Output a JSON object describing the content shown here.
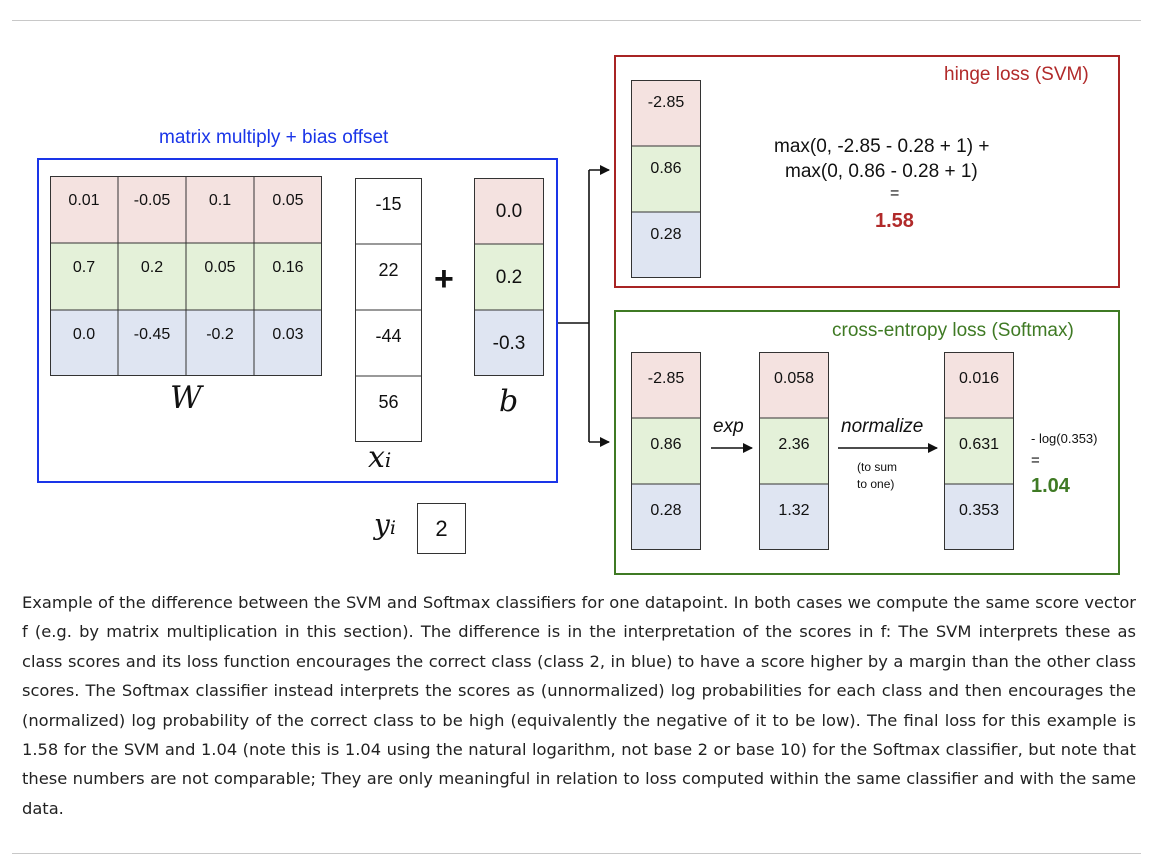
{
  "colors": {
    "row_red": "#f4e2e0",
    "row_green": "#e4f1d9",
    "row_blue": "#dfe5f2",
    "blue_border": "#1a35e8",
    "red_border": "#a82424",
    "green_border": "#3f7a24",
    "blue_text": "#1a35e8",
    "red_text": "#b12a2a",
    "green_text": "#3f7a24"
  },
  "left_panel": {
    "title": "matrix multiply + bias offset",
    "W": [
      [
        "0.01",
        "-0.05",
        "0.1",
        "0.05"
      ],
      [
        "0.7",
        "0.2",
        "0.05",
        "0.16"
      ],
      [
        "0.0",
        "-0.45",
        "-0.2",
        "0.03"
      ]
    ],
    "W_label": "W",
    "x": [
      "-15",
      "22",
      "-44",
      "56"
    ],
    "x_label": "x",
    "x_sub": "i",
    "plus": "+",
    "b": [
      "0.0",
      "0.2",
      "-0.3"
    ],
    "b_label": "b",
    "y_label": "y",
    "y_sub": "i",
    "y_value": "2"
  },
  "svm": {
    "title": "hinge loss (SVM)",
    "scores": [
      "-2.85",
      "0.86",
      "0.28"
    ],
    "line1": "max(0, -2.85 - 0.28 + 1) +",
    "line2": "max(0, 0.86 - 0.28 + 1)",
    "eq": "=",
    "result": "1.58"
  },
  "softmax": {
    "title": "cross-entropy loss (Softmax)",
    "scores": [
      "-2.85",
      "0.86",
      "0.28"
    ],
    "exp_label": "exp",
    "exp_values": [
      "0.058",
      "2.36",
      "1.32"
    ],
    "normalize_label": "normalize",
    "normalize_note_1": "(to sum",
    "normalize_note_2": "to one)",
    "probs": [
      "0.016",
      "0.631",
      "0.353"
    ],
    "loss_expr": "- log(0.353)",
    "eq": "=",
    "result": "1.04"
  },
  "caption": "Example of the difference between the SVM and Softmax classifiers for one datapoint. In both cases we compute the same score vector f (e.g. by matrix multiplication in this section). The difference is in the interpretation of the scores in f: The SVM interprets these as class scores and its loss function encourages the correct class (class 2, in blue) to have a score higher by a margin than the other class scores. The Softmax classifier instead interprets the scores as (unnormalized) log probabilities for each class and then encourages the (normalized) log probability of the correct class to be high (equivalently the negative of it to be low). The final loss for this example is 1.58 for the SVM and 1.04 (note this is 1.04 using the natural logarithm, not base 2 or base 10) for the Softmax classifier, but note that these numbers are not comparable; They are only meaningful in relation to loss computed within the same classifier and with the same data."
}
